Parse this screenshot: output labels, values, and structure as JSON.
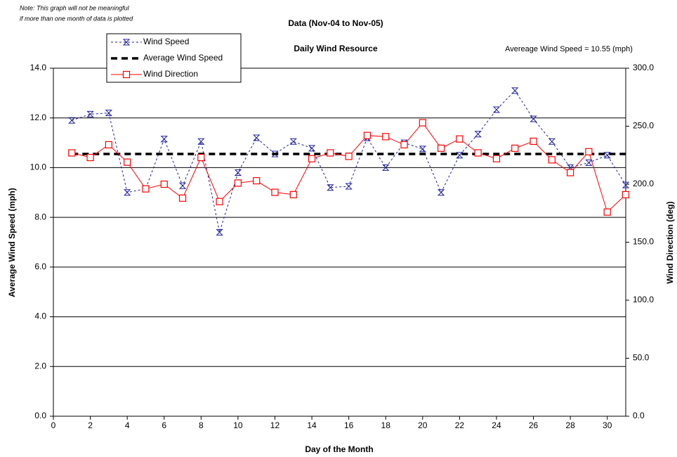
{
  "chart_data": {
    "type": "line",
    "note": [
      "Note: This graph will not be meaningful",
      "if more than one month of data is plotted"
    ],
    "title": "Data (Nov-04 to Nov-05)",
    "subtitle": "Daily Wind Resource",
    "annotation": "Avereage Wind Speed = 10.55 (mph)",
    "x_label": "Day of the Month",
    "y_label": "Average Wind Speed (mph)",
    "y2_label": "Wind Direction (deg)",
    "x": [
      1,
      2,
      3,
      4,
      5,
      6,
      7,
      8,
      9,
      10,
      11,
      12,
      13,
      14,
      15,
      16,
      17,
      18,
      19,
      20,
      21,
      22,
      23,
      24,
      25,
      26,
      27,
      28,
      29,
      30,
      31
    ],
    "series": [
      {
        "name": "Wind Speed",
        "color": "#1f1fa0",
        "axis": "y",
        "style": "dashed-x",
        "values": [
          11.9,
          12.15,
          12.2,
          9.0,
          9.15,
          11.15,
          9.27,
          11.05,
          7.4,
          9.8,
          11.2,
          10.55,
          11.05,
          10.78,
          9.2,
          9.25,
          11.2,
          10.0,
          11.0,
          10.75,
          9.0,
          10.5,
          11.35,
          12.33,
          13.1,
          11.96,
          11.05,
          10.0,
          10.2,
          10.5,
          9.3
        ]
      },
      {
        "name": "Average Wind Speed",
        "color": "#000000",
        "axis": "y",
        "style": "average",
        "value": 10.55
      },
      {
        "name": "Wind Direction",
        "color": "#ff0000",
        "axis": "y2",
        "style": "solid-square",
        "values": [
          227,
          223,
          234,
          219,
          196,
          200,
          188,
          223,
          185,
          201,
          203,
          193,
          191,
          222,
          227,
          224,
          242,
          241,
          234,
          253,
          231,
          239,
          227,
          222,
          231,
          237,
          221,
          210,
          228,
          176,
          191
        ]
      }
    ],
    "xlim": [
      0,
      31
    ],
    "xticks": [
      0,
      2,
      4,
      6,
      8,
      10,
      12,
      14,
      16,
      18,
      20,
      22,
      24,
      26,
      28,
      30
    ],
    "ylim": [
      0,
      14
    ],
    "yticks": [
      {
        "value": 0,
        "label": "0.0"
      },
      {
        "value": 2,
        "label": "2.0"
      },
      {
        "value": 4,
        "label": "4.0"
      },
      {
        "value": 6,
        "label": "6.0"
      },
      {
        "value": 8,
        "label": "8.0"
      },
      {
        "value": 10,
        "label": "10.0"
      },
      {
        "value": 12,
        "label": "12.0"
      },
      {
        "value": 14,
        "label": "14.0"
      }
    ],
    "y2lim": [
      0,
      300
    ],
    "y2ticks": [
      {
        "value": 0,
        "label": "0.0"
      },
      {
        "value": 50,
        "label": "50.0"
      },
      {
        "value": 100,
        "label": "100.0"
      },
      {
        "value": 150,
        "label": "150.0"
      },
      {
        "value": 200,
        "label": "200.0"
      },
      {
        "value": 250,
        "label": "250.0"
      },
      {
        "value": 300,
        "label": "300.0"
      }
    ],
    "grid": true,
    "legend": "top-left"
  }
}
